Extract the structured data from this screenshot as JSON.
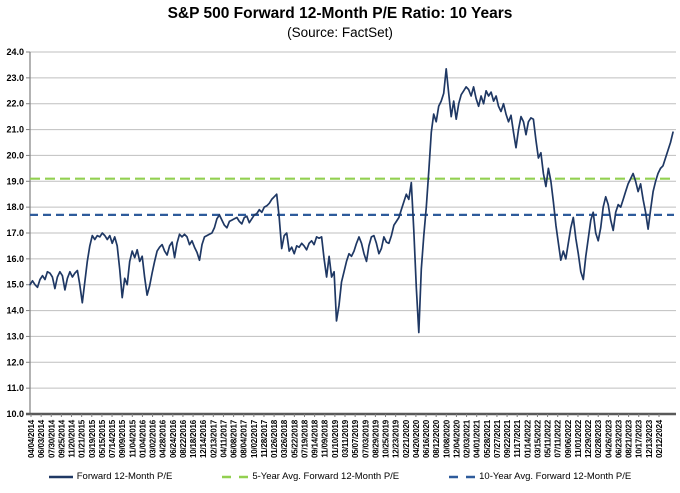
{
  "chart_data": {
    "type": "line",
    "title": "S&P 500 Forward 12-Month P/E Ratio: 10 Years",
    "subtitle": "(Source: FactSet)",
    "ylim": [
      10.0,
      24.0
    ],
    "ytick_step": 1.0,
    "grid": true,
    "legend_position": "bottom",
    "colors": {
      "grid": "#BFBFBF",
      "axis": "#808080",
      "axis_bottom": "#595959",
      "forward_pe": "#1F3864",
      "avg_5yr": "#92D050",
      "avg_10yr": "#2E5B9B"
    },
    "y_tick_labels": [
      "24.0",
      "23.0",
      "22.0",
      "21.0",
      "20.0",
      "19.0",
      "18.0",
      "17.0",
      "16.0",
      "15.0",
      "14.0",
      "13.0",
      "12.0",
      "11.0",
      "10.0"
    ],
    "x_tick_labels": [
      "04/04/2014",
      "06/03/2014",
      "07/30/2014",
      "09/25/2014",
      "11/20/2014",
      "01/21/2015",
      "03/19/2015",
      "05/15/2015",
      "07/14/2015",
      "09/09/2015",
      "11/04/2015",
      "01/04/2016",
      "03/02/2016",
      "04/28/2016",
      "06/24/2016",
      "08/22/2016",
      "10/18/2016",
      "12/14/2016",
      "02/13/2017",
      "04/11/2017",
      "06/08/2017",
      "08/04/2017",
      "10/02/2017",
      "11/28/2017",
      "01/26/2018",
      "03/26/2018",
      "05/22/2018",
      "07/19/2018",
      "09/14/2018",
      "11/09/2018",
      "01/10/2019",
      "03/11/2019",
      "05/07/2019",
      "07/03/2019",
      "08/29/2019",
      "10/25/2019",
      "12/23/2019",
      "02/21/2020",
      "04/20/2020",
      "06/16/2020",
      "08/12/2020",
      "10/08/2020",
      "12/04/2020",
      "02/03/2021",
      "04/01/2021",
      "05/28/2021",
      "07/27/2021",
      "09/22/2021",
      "11/17/2021",
      "01/14/2022",
      "03/15/2022",
      "05/11/2022",
      "07/11/2022",
      "09/06/2022",
      "11/01/2022",
      "12/29/2022",
      "02/28/2023",
      "04/26/2023",
      "06/23/2023",
      "08/21/2023",
      "10/17/2023",
      "12/13/2023",
      "02/12/2024"
    ],
    "series": [
      {
        "name": "Forward 12-Month P/E",
        "color": "#1F3864",
        "style": "solid",
        "sampling": "biweekly 04/04/2014 - 02/2024",
        "values": [
          15.0,
          15.15,
          15.0,
          14.9,
          15.2,
          15.35,
          15.2,
          15.5,
          15.45,
          15.3,
          14.85,
          15.3,
          15.5,
          15.35,
          14.8,
          15.25,
          15.5,
          15.3,
          15.45,
          15.55,
          15.0,
          14.3,
          15.1,
          15.9,
          16.5,
          16.9,
          16.75,
          16.9,
          16.85,
          17.0,
          16.9,
          16.75,
          16.9,
          16.6,
          16.85,
          16.5,
          15.6,
          14.5,
          15.25,
          15.0,
          15.9,
          16.3,
          16.05,
          16.35,
          15.9,
          16.1,
          15.3,
          14.6,
          14.95,
          15.45,
          15.9,
          16.3,
          16.45,
          16.55,
          16.3,
          16.15,
          16.5,
          16.65,
          16.05,
          16.6,
          16.95,
          16.85,
          16.95,
          16.85,
          16.55,
          16.7,
          16.45,
          16.25,
          15.95,
          16.55,
          16.85,
          16.9,
          16.95,
          17.0,
          17.2,
          17.55,
          17.7,
          17.5,
          17.3,
          17.2,
          17.45,
          17.5,
          17.55,
          17.6,
          17.45,
          17.35,
          17.6,
          17.65,
          17.4,
          17.55,
          17.7,
          17.75,
          17.9,
          17.8,
          18.0,
          18.05,
          18.15,
          18.3,
          18.4,
          18.5,
          17.6,
          16.4,
          16.9,
          17.0,
          16.3,
          16.45,
          16.2,
          16.5,
          16.45,
          16.6,
          16.5,
          16.35,
          16.6,
          16.7,
          16.55,
          16.85,
          16.8,
          16.85,
          16.0,
          15.3,
          16.1,
          15.3,
          15.5,
          13.6,
          14.2,
          15.1,
          15.5,
          15.9,
          16.2,
          16.1,
          16.3,
          16.6,
          16.85,
          16.6,
          16.2,
          15.9,
          16.5,
          16.85,
          16.9,
          16.6,
          16.2,
          16.4,
          16.85,
          16.65,
          16.6,
          16.9,
          17.3,
          17.45,
          17.6,
          17.9,
          18.2,
          18.5,
          18.3,
          18.95,
          17.1,
          14.9,
          13.15,
          15.6,
          16.9,
          18.0,
          19.4,
          20.9,
          21.6,
          21.3,
          21.9,
          22.1,
          22.4,
          23.35,
          22.4,
          21.5,
          22.1,
          21.4,
          22.0,
          22.35,
          22.5,
          22.65,
          22.55,
          22.3,
          22.65,
          22.2,
          21.9,
          22.3,
          22.0,
          22.5,
          22.3,
          22.45,
          22.1,
          22.3,
          21.9,
          21.7,
          22.0,
          21.6,
          21.3,
          21.55,
          20.9,
          20.3,
          21.0,
          21.5,
          21.3,
          20.8,
          21.3,
          21.45,
          21.4,
          20.6,
          19.9,
          20.1,
          19.3,
          18.8,
          19.5,
          19.0,
          18.2,
          17.3,
          16.6,
          15.95,
          16.3,
          16.0,
          16.6,
          17.2,
          17.6,
          16.8,
          16.2,
          15.5,
          15.2,
          16.1,
          16.8,
          17.5,
          17.8,
          17.0,
          16.7,
          17.2,
          18.0,
          18.4,
          18.1,
          17.5,
          17.1,
          17.8,
          18.1,
          18.0,
          18.3,
          18.6,
          18.9,
          19.1,
          19.3,
          19.0,
          18.6,
          18.9,
          18.3,
          17.8,
          17.15,
          17.9,
          18.6,
          19.0,
          19.3,
          19.5,
          19.6,
          19.9,
          20.2,
          20.5,
          20.9
        ]
      },
      {
        "name": "5-Year Avg. Forward 12-Month P/E",
        "color": "#92D050",
        "style": "dashed",
        "dash": "10 5",
        "dash_legend": "9 8",
        "value": 19.1
      },
      {
        "name": "10-Year Avg. Forward 12-Month P/E",
        "color": "#2E5B9B",
        "style": "dashed",
        "dash": "8 5",
        "dash_legend": "9 8",
        "value": 17.7
      }
    ]
  }
}
